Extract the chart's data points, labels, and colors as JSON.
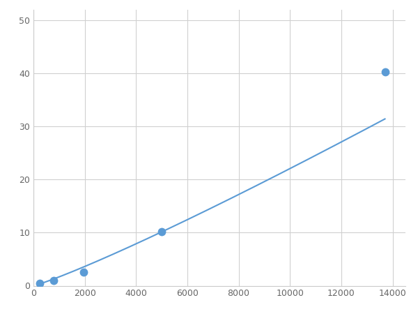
{
  "x_data": [
    250,
    800,
    1950,
    5000,
    13700
  ],
  "y_data": [
    0.5,
    1.0,
    2.5,
    10.2,
    40.2
  ],
  "line_color": "#5b9bd5",
  "marker_color": "#5b9bd5",
  "marker_size": 6,
  "line_width": 1.5,
  "xlim": [
    0,
    14500
  ],
  "ylim": [
    0,
    52
  ],
  "xticks": [
    0,
    2000,
    4000,
    6000,
    8000,
    10000,
    12000,
    14000
  ],
  "yticks": [
    0,
    10,
    20,
    30,
    40,
    50
  ],
  "grid_color": "#d0d0d0",
  "background_color": "#ffffff",
  "figsize": [
    6.0,
    4.5
  ],
  "dpi": 100
}
